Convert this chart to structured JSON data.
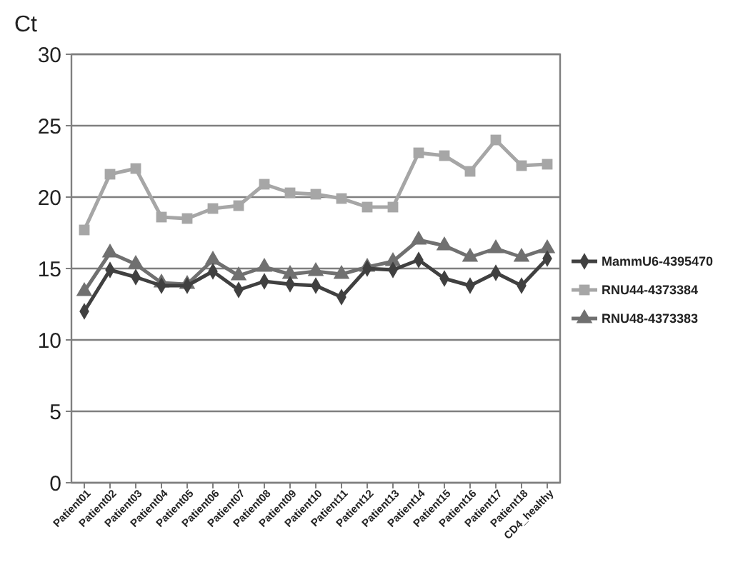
{
  "chart_data": {
    "type": "line",
    "ylabel": "Ct",
    "categories": [
      "Patient01",
      "Patient02",
      "Patient03",
      "Patient04",
      "Patient05",
      "Patient06",
      "Patient07",
      "Patient08",
      "Patient09",
      "Patient10",
      "Patient11",
      "Patient12",
      "Patient13",
      "Patient14",
      "Patient15",
      "Patient16",
      "Patient17",
      "Patient18",
      "CD4_healthy"
    ],
    "series": [
      {
        "name": "MammU6-4395470",
        "color": "#404040",
        "marker": "diamond",
        "values": [
          12.0,
          14.9,
          14.4,
          13.8,
          13.8,
          14.8,
          13.5,
          14.1,
          13.9,
          13.8,
          13.0,
          15.0,
          14.9,
          15.6,
          14.3,
          13.8,
          14.7,
          13.8,
          15.7
        ]
      },
      {
        "name": "RNU44-4373384",
        "color": "#a6a6a6",
        "marker": "square",
        "values": [
          17.7,
          21.6,
          22.0,
          18.6,
          18.5,
          19.2,
          19.4,
          20.9,
          20.3,
          20.2,
          19.9,
          19.3,
          19.3,
          23.1,
          22.9,
          21.8,
          24.0,
          22.2,
          22.3
        ]
      },
      {
        "name": "RNU48-4373383",
        "color": "#707070",
        "marker": "triangle",
        "values": [
          13.4,
          16.1,
          15.3,
          14.0,
          13.9,
          15.6,
          14.5,
          15.1,
          14.6,
          14.8,
          14.6,
          15.1,
          15.5,
          17.0,
          16.6,
          15.8,
          16.4,
          15.8,
          16.4
        ]
      }
    ],
    "ylim": [
      0,
      30
    ],
    "yticks": [
      0,
      5,
      10,
      15,
      20,
      25,
      30
    ],
    "grid": "y",
    "legend": "right",
    "line_style": "solid"
  }
}
